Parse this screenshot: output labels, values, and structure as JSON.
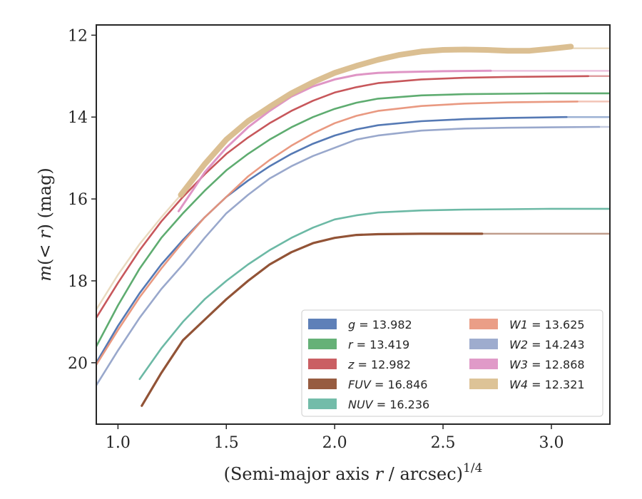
{
  "chart_data": {
    "type": "line",
    "xlabel": "(Semi-major axis r / arcsec)",
    "xlabel_parts": {
      "pre": "(Semi-major axis ",
      "var": "r",
      "mid": " / arcsec)",
      "sup": "1/4"
    },
    "ylabel": "m(< r) (mag)",
    "ylabel_parts": {
      "var": "m",
      "mid": "(< ",
      "var2": "r",
      "post": ") (mag)"
    },
    "xlim": [
      0.9,
      3.27
    ],
    "ylim": [
      21.5,
      11.75
    ],
    "y_inverted": true,
    "x_ticks": [
      1.0,
      1.5,
      2.0,
      2.5,
      3.0
    ],
    "x_tick_labels": [
      "1.0",
      "1.5",
      "2.0",
      "2.5",
      "3.0"
    ],
    "y_ticks": [
      12,
      14,
      16,
      18,
      20
    ],
    "y_tick_labels": [
      "12",
      "14",
      "16",
      "18",
      "20"
    ],
    "grid": false,
    "legend_position": "lower-right",
    "legend_columns": 2,
    "series": [
      {
        "id": "g",
        "name": "g = 13.982",
        "band": "g",
        "value": "13.982",
        "color": "#4c72b0",
        "width": 2.6,
        "x_end": 3.07,
        "x_ext_end": 3.27,
        "ext_value": 14.0,
        "x": [
          0.9,
          1.0,
          1.1,
          1.2,
          1.3,
          1.4,
          1.5,
          1.6,
          1.7,
          1.8,
          1.9,
          2.0,
          2.1,
          2.2,
          2.4,
          2.6,
          2.8,
          3.07
        ],
        "y": [
          20.0,
          19.1,
          18.3,
          17.6,
          17.0,
          16.45,
          15.95,
          15.55,
          15.2,
          14.9,
          14.65,
          14.45,
          14.3,
          14.2,
          14.1,
          14.05,
          14.02,
          14.0
        ]
      },
      {
        "id": "r",
        "name": "r = 13.419",
        "band": "r",
        "value": "13.419",
        "color": "#55a868",
        "width": 2.6,
        "x_end": 3.27,
        "x_ext_end": 3.27,
        "ext_value": 13.42,
        "x": [
          0.9,
          1.0,
          1.1,
          1.2,
          1.3,
          1.4,
          1.5,
          1.6,
          1.7,
          1.8,
          1.9,
          2.0,
          2.1,
          2.2,
          2.4,
          2.6,
          2.8,
          3.0,
          3.27
        ],
        "y": [
          19.6,
          18.6,
          17.7,
          16.95,
          16.35,
          15.8,
          15.3,
          14.9,
          14.55,
          14.25,
          14.0,
          13.8,
          13.65,
          13.55,
          13.47,
          13.44,
          13.43,
          13.42,
          13.42
        ]
      },
      {
        "id": "z",
        "name": "z = 12.982",
        "band": "z",
        "value": "12.982",
        "color": "#c44e52",
        "width": 2.6,
        "x_end": 3.17,
        "x_ext_end": 3.27,
        "ext_value": 13.0,
        "x": [
          0.9,
          1.0,
          1.1,
          1.2,
          1.3,
          1.4,
          1.5,
          1.6,
          1.7,
          1.8,
          1.9,
          2.0,
          2.1,
          2.2,
          2.4,
          2.6,
          2.8,
          3.17
        ],
        "y": [
          18.9,
          18.05,
          17.25,
          16.55,
          15.95,
          15.4,
          14.9,
          14.5,
          14.15,
          13.85,
          13.6,
          13.4,
          13.27,
          13.17,
          13.08,
          13.04,
          13.02,
          13.0
        ]
      },
      {
        "id": "fuv",
        "name": "FUV = 16.846",
        "band": "FUV",
        "value": "16.846",
        "color": "#8c4a2b",
        "width": 3.2,
        "x_end": 2.68,
        "x_ext_end": 3.27,
        "ext_value": 16.85,
        "x": [
          1.11,
          1.2,
          1.3,
          1.4,
          1.5,
          1.6,
          1.7,
          1.8,
          1.9,
          2.0,
          2.1,
          2.2,
          2.4,
          2.68
        ],
        "y": [
          21.05,
          20.25,
          19.45,
          18.95,
          18.45,
          18.0,
          17.6,
          17.3,
          17.08,
          16.95,
          16.88,
          16.86,
          16.85,
          16.85
        ]
      },
      {
        "id": "nuv",
        "name": "NUV = 16.236",
        "band": "NUV",
        "value": "16.236",
        "color": "#64b5a0",
        "width": 2.6,
        "x_end": 3.27,
        "x_ext_end": 3.27,
        "ext_value": 16.24,
        "x": [
          1.1,
          1.2,
          1.3,
          1.4,
          1.5,
          1.6,
          1.7,
          1.8,
          1.9,
          2.0,
          2.1,
          2.2,
          2.4,
          2.6,
          2.8,
          3.0,
          3.27
        ],
        "y": [
          20.4,
          19.65,
          19.0,
          18.45,
          18.0,
          17.6,
          17.25,
          16.95,
          16.7,
          16.5,
          16.4,
          16.33,
          16.28,
          16.26,
          16.25,
          16.24,
          16.24
        ]
      },
      {
        "id": "w1",
        "name": "W1 = 13.625",
        "band": "W1",
        "value": "13.625",
        "color": "#e8947a",
        "width": 2.6,
        "x_end": 3.12,
        "x_ext_end": 3.27,
        "ext_value": 13.62,
        "x": [
          0.9,
          1.0,
          1.1,
          1.2,
          1.3,
          1.4,
          1.5,
          1.6,
          1.7,
          1.8,
          1.9,
          2.0,
          2.1,
          2.2,
          2.4,
          2.6,
          2.8,
          3.12
        ],
        "y": [
          20.05,
          19.2,
          18.4,
          17.7,
          17.05,
          16.45,
          15.95,
          15.45,
          15.05,
          14.7,
          14.4,
          14.15,
          13.97,
          13.85,
          13.73,
          13.67,
          13.64,
          13.62
        ]
      },
      {
        "id": "w2",
        "name": "W2 = 14.243",
        "band": "W2",
        "value": "14.243",
        "color": "#93a3c9",
        "width": 2.6,
        "x_end": 3.22,
        "x_ext_end": 3.27,
        "ext_value": 14.24,
        "x": [
          0.9,
          1.0,
          1.1,
          1.2,
          1.3,
          1.4,
          1.5,
          1.6,
          1.7,
          1.8,
          1.9,
          2.0,
          2.1,
          2.2,
          2.4,
          2.6,
          2.8,
          3.0,
          3.22
        ],
        "y": [
          20.55,
          19.7,
          18.9,
          18.2,
          17.6,
          16.95,
          16.35,
          15.9,
          15.5,
          15.2,
          14.95,
          14.75,
          14.55,
          14.45,
          14.33,
          14.28,
          14.26,
          14.25,
          14.24
        ]
      },
      {
        "id": "w3",
        "name": "W3 = 12.868",
        "band": "W3",
        "value": "12.868",
        "color": "#dd8fc2",
        "width": 3.0,
        "x_end": 2.72,
        "x_ext_end": 3.27,
        "ext_value": 12.87,
        "x": [
          1.28,
          1.35,
          1.4,
          1.5,
          1.6,
          1.7,
          1.8,
          1.9,
          2.0,
          2.1,
          2.2,
          2.3,
          2.5,
          2.72
        ],
        "y": [
          16.3,
          15.75,
          15.35,
          14.75,
          14.25,
          13.85,
          13.5,
          13.25,
          13.08,
          12.97,
          12.92,
          12.9,
          12.88,
          12.87
        ]
      },
      {
        "id": "w4",
        "name": "W4 = 12.321",
        "band": "W4",
        "value": "12.321",
        "color": "#d9bc8c",
        "width": 8.0,
        "x_end": 3.09,
        "x_ext_end": 3.27,
        "ext_value": 12.32,
        "pre_x": [
          0.9,
          1.0,
          1.1,
          1.2,
          1.29
        ],
        "pre_y": [
          18.7,
          17.85,
          17.1,
          16.45,
          15.9
        ],
        "x": [
          1.29,
          1.4,
          1.5,
          1.6,
          1.7,
          1.8,
          1.9,
          2.0,
          2.1,
          2.2,
          2.3,
          2.4,
          2.5,
          2.6,
          2.7,
          2.8,
          2.9,
          3.0,
          3.09
        ],
        "y": [
          15.9,
          15.15,
          14.55,
          14.1,
          13.75,
          13.42,
          13.15,
          12.92,
          12.75,
          12.6,
          12.48,
          12.4,
          12.36,
          12.35,
          12.36,
          12.38,
          12.38,
          12.33,
          12.28
        ]
      }
    ],
    "legend_left": [
      "g",
      "r",
      "z",
      "fuv",
      "nuv"
    ],
    "legend_right": [
      "w1",
      "w2",
      "w3",
      "w4"
    ]
  }
}
